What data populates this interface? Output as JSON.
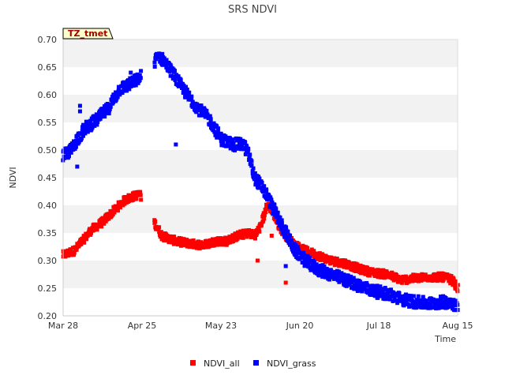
{
  "chart_data": {
    "type": "scatter",
    "title": "SRS NDVI",
    "xlabel": "Time",
    "ylabel": "NDVI",
    "annotation": "TZ_tmet",
    "x_ticks": [
      "Mar 28",
      "Apr 25",
      "May 23",
      "Jun 20",
      "Jul 18",
      "Aug 15"
    ],
    "x_tick_days": [
      0,
      28,
      56,
      84,
      112,
      140
    ],
    "xlim_days": [
      0,
      140
    ],
    "ylim": [
      0.2,
      0.7
    ],
    "y_ticks": [
      "0.20",
      "0.25",
      "0.30",
      "0.35",
      "0.40",
      "0.45",
      "0.50",
      "0.55",
      "0.60",
      "0.65",
      "0.70"
    ],
    "grid": "horizontal alternating bands",
    "legend_position": "bottom",
    "series": [
      {
        "name": "NDVI_all",
        "color": "#ff0000",
        "trend": [
          [
            0,
            0.31
          ],
          [
            4,
            0.318
          ],
          [
            6,
            0.33
          ],
          [
            10,
            0.355
          ],
          [
            14,
            0.37
          ],
          [
            18,
            0.39
          ],
          [
            22,
            0.41
          ],
          [
            27,
            0.42
          ],
          [
            35,
            0.345
          ],
          [
            40,
            0.335
          ],
          [
            46,
            0.33
          ],
          [
            50,
            0.328
          ],
          [
            54,
            0.335
          ],
          [
            58,
            0.335
          ],
          [
            62,
            0.345
          ],
          [
            66,
            0.35
          ],
          [
            68,
            0.345
          ],
          [
            70,
            0.36
          ],
          [
            72,
            0.395
          ],
          [
            73,
            0.4
          ],
          [
            75,
            0.38
          ],
          [
            77,
            0.36
          ],
          [
            79,
            0.345
          ],
          [
            82,
            0.33
          ],
          [
            85,
            0.32
          ],
          [
            90,
            0.31
          ],
          [
            95,
            0.3
          ],
          [
            100,
            0.295
          ],
          [
            105,
            0.285
          ],
          [
            110,
            0.278
          ],
          [
            115,
            0.275
          ],
          [
            120,
            0.265
          ],
          [
            125,
            0.268
          ],
          [
            130,
            0.27
          ],
          [
            135,
            0.27
          ],
          [
            138,
            0.265
          ],
          [
            140,
            0.25
          ]
        ],
        "outliers": [
          [
            69,
            0.3
          ],
          [
            79,
            0.26
          ],
          [
            74,
            0.345
          ]
        ]
      },
      {
        "name": "NDVI_grass",
        "color": "#0000ff",
        "trend": [
          [
            0,
            0.49
          ],
          [
            3,
            0.5
          ],
          [
            5,
            0.52
          ],
          [
            8,
            0.54
          ],
          [
            12,
            0.555
          ],
          [
            16,
            0.575
          ],
          [
            20,
            0.61
          ],
          [
            24,
            0.62
          ],
          [
            27,
            0.63
          ],
          [
            34,
            0.67
          ],
          [
            36,
            0.66
          ],
          [
            40,
            0.63
          ],
          [
            44,
            0.6
          ],
          [
            48,
            0.575
          ],
          [
            52,
            0.555
          ],
          [
            56,
            0.52
          ],
          [
            60,
            0.51
          ],
          [
            64,
            0.51
          ],
          [
            66,
            0.49
          ],
          [
            68,
            0.45
          ],
          [
            71,
            0.43
          ],
          [
            74,
            0.4
          ],
          [
            77,
            0.37
          ],
          [
            79,
            0.35
          ],
          [
            82,
            0.32
          ],
          [
            86,
            0.3
          ],
          [
            90,
            0.285
          ],
          [
            95,
            0.275
          ],
          [
            100,
            0.265
          ],
          [
            105,
            0.255
          ],
          [
            110,
            0.245
          ],
          [
            115,
            0.24
          ],
          [
            120,
            0.23
          ],
          [
            125,
            0.225
          ],
          [
            130,
            0.222
          ],
          [
            135,
            0.225
          ],
          [
            138,
            0.225
          ],
          [
            140,
            0.215
          ]
        ],
        "outliers": [
          [
            6,
            0.58
          ],
          [
            6,
            0.57
          ],
          [
            5,
            0.47
          ],
          [
            24,
            0.64
          ],
          [
            40,
            0.51
          ],
          [
            79,
            0.29
          ]
        ]
      }
    ]
  }
}
